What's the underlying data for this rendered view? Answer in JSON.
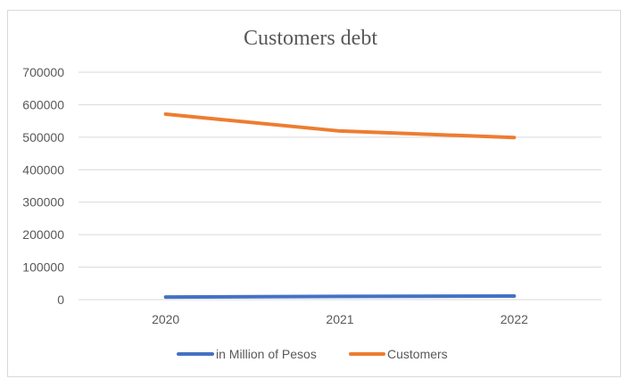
{
  "chart_data": {
    "type": "line",
    "title": "Customers debt",
    "xlabel": "",
    "ylabel": "",
    "categories": [
      "2020",
      "2021",
      "2022"
    ],
    "ylim": [
      0,
      700000
    ],
    "yticks": [
      0,
      100000,
      200000,
      300000,
      400000,
      500000,
      600000,
      700000
    ],
    "ytick_labels": [
      "0",
      "100000",
      "200000",
      "300000",
      "400000",
      "500000",
      "600000",
      "700000"
    ],
    "grid": true,
    "legend_position": "bottom",
    "series": [
      {
        "name": "in Million of Pesos",
        "color": "#4472c4",
        "values": [
          8000,
          10000,
          11000
        ]
      },
      {
        "name": "Customers",
        "color": "#ed7d31",
        "values": [
          571000,
          519000,
          499000
        ]
      }
    ]
  }
}
